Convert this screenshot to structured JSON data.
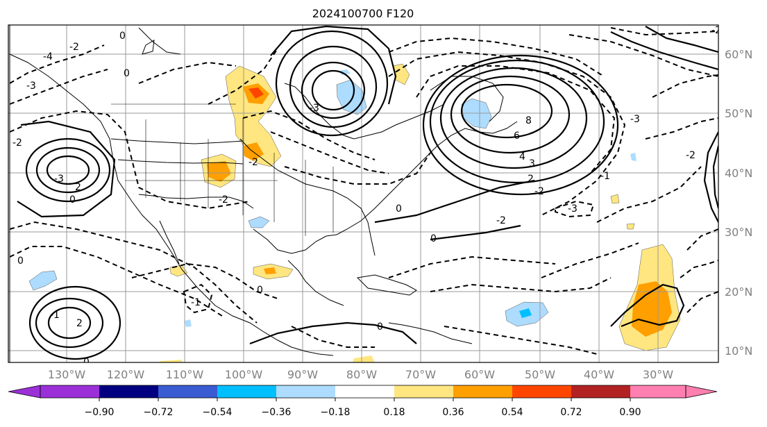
{
  "title": "2024100700 F120",
  "lon_labels": [
    "130°W",
    "120°W",
    "110°W",
    "100°W",
    "90°W",
    "80°W",
    "70°W",
    "60°W",
    "50°W",
    "40°W",
    "30°W"
  ],
  "lat_labels": [
    "60°N",
    "50°N",
    "40°N",
    "30°N",
    "20°N",
    "10°N"
  ],
  "contour_labels": [
    "0",
    "-2",
    "-3",
    "-4",
    "0",
    "-2",
    "-3",
    "0",
    "2",
    "4",
    "6",
    "8",
    "-2",
    "0",
    "-2",
    "-3",
    "0",
    "-2",
    "-1",
    "0",
    "-2",
    "-3",
    "0",
    "3",
    "2",
    "0",
    "-1",
    "0",
    "2",
    "-1",
    "-2",
    "-3",
    "-2"
  ],
  "colorbar": {
    "ticks": [
      "−0.90",
      "−0.72",
      "−0.54",
      "−0.36",
      "−0.18",
      "0.18",
      "0.36",
      "0.54",
      "0.72",
      "0.90"
    ],
    "colors": [
      "#9b30d9",
      "#000080",
      "#3a5bd1",
      "#00bfff",
      "#addcff",
      "#ffffff",
      "#ffe680",
      "#ff9f00",
      "#ff4500",
      "#b22222",
      "#ff80b0"
    ]
  },
  "shading_colors": {
    "light_yellow": "#ffe680",
    "orange": "#ff9f00",
    "red_orange": "#ff4500",
    "light_blue": "#addcff",
    "cyan": "#00bfff"
  }
}
